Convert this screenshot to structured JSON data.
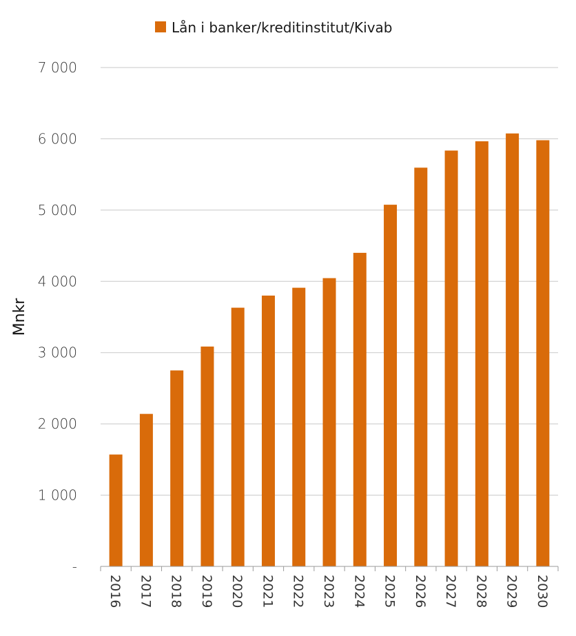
{
  "chart_data": {
    "type": "bar",
    "categories": [
      "2016",
      "2017",
      "2018",
      "2019",
      "2020",
      "2021",
      "2022",
      "2023",
      "2024",
      "2025",
      "2026",
      "2027",
      "2028",
      "2029",
      "2030"
    ],
    "series": [
      {
        "name": "Lån i banker/kreditinstitut/Kivab",
        "values": [
          1570,
          2140,
          2750,
          3085,
          3630,
          3800,
          3910,
          4045,
          4400,
          5075,
          5595,
          5835,
          5965,
          6075,
          5980
        ]
      }
    ],
    "ylabel": "Mnkr",
    "xlabel": "",
    "ylim": [
      0,
      7000
    ],
    "yticks": [
      0,
      1000,
      2000,
      3000,
      4000,
      5000,
      6000,
      7000
    ],
    "ytick_labels": [
      "-",
      "1 000",
      "2 000",
      "3 000",
      "4 000",
      "5 000",
      "6 000",
      "7 000"
    ],
    "grid": true,
    "legend_position": "top",
    "colors": {
      "bar": "#D96B0A",
      "grid": "#C8C8C8",
      "axis": "#9A9A9A"
    }
  }
}
